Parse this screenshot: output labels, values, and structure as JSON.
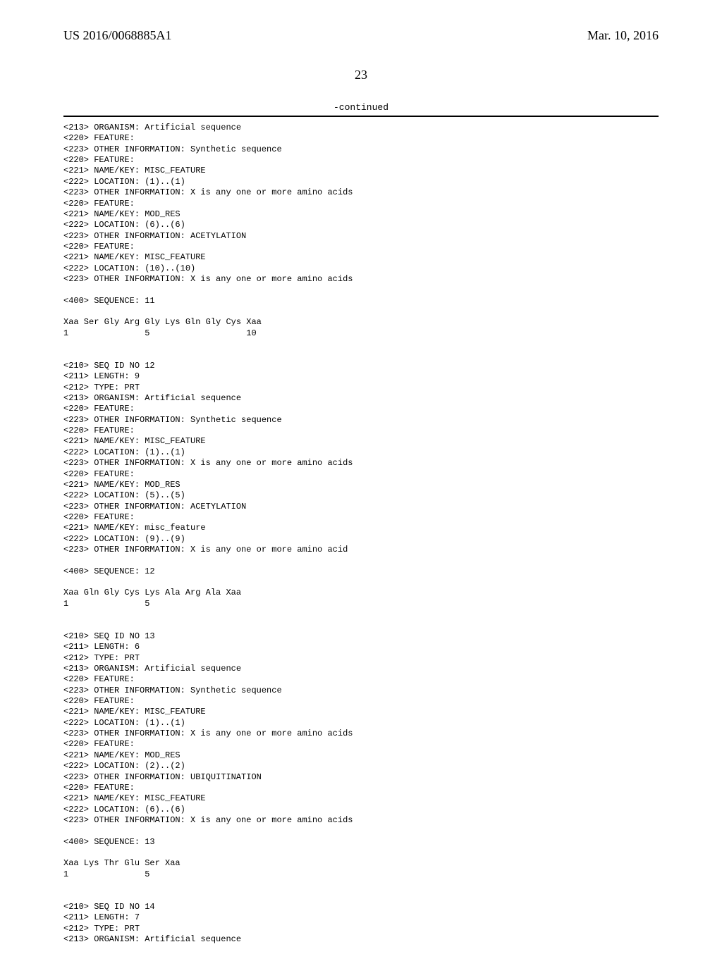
{
  "header": {
    "left": "US 2016/0068885A1",
    "right": "Mar. 10, 2016"
  },
  "pagenum": "23",
  "continued": "-continued",
  "seq_text": "<213> ORGANISM: Artificial sequence\n<220> FEATURE:\n<223> OTHER INFORMATION: Synthetic sequence\n<220> FEATURE:\n<221> NAME/KEY: MISC_FEATURE\n<222> LOCATION: (1)..(1)\n<223> OTHER INFORMATION: X is any one or more amino acids\n<220> FEATURE:\n<221> NAME/KEY: MOD_RES\n<222> LOCATION: (6)..(6)\n<223> OTHER INFORMATION: ACETYLATION\n<220> FEATURE:\n<221> NAME/KEY: MISC_FEATURE\n<222> LOCATION: (10)..(10)\n<223> OTHER INFORMATION: X is any one or more amino acids\n\n<400> SEQUENCE: 11\n\nXaa Ser Gly Arg Gly Lys Gln Gly Cys Xaa\n1               5                   10\n\n\n<210> SEQ ID NO 12\n<211> LENGTH: 9\n<212> TYPE: PRT\n<213> ORGANISM: Artificial sequence\n<220> FEATURE:\n<223> OTHER INFORMATION: Synthetic sequence\n<220> FEATURE:\n<221> NAME/KEY: MISC_FEATURE\n<222> LOCATION: (1)..(1)\n<223> OTHER INFORMATION: X is any one or more amino acids\n<220> FEATURE:\n<221> NAME/KEY: MOD_RES\n<222> LOCATION: (5)..(5)\n<223> OTHER INFORMATION: ACETYLATION\n<220> FEATURE:\n<221> NAME/KEY: misc_feature\n<222> LOCATION: (9)..(9)\n<223> OTHER INFORMATION: X is any one or more amino acid\n\n<400> SEQUENCE: 12\n\nXaa Gln Gly Cys Lys Ala Arg Ala Xaa\n1               5\n\n\n<210> SEQ ID NO 13\n<211> LENGTH: 6\n<212> TYPE: PRT\n<213> ORGANISM: Artificial sequence\n<220> FEATURE:\n<223> OTHER INFORMATION: Synthetic sequence\n<220> FEATURE:\n<221> NAME/KEY: MISC_FEATURE\n<222> LOCATION: (1)..(1)\n<223> OTHER INFORMATION: X is any one or more amino acids\n<220> FEATURE:\n<221> NAME/KEY: MOD_RES\n<222> LOCATION: (2)..(2)\n<223> OTHER INFORMATION: UBIQUITINATION\n<220> FEATURE:\n<221> NAME/KEY: MISC_FEATURE\n<222> LOCATION: (6)..(6)\n<223> OTHER INFORMATION: X is any one or more amino acids\n\n<400> SEQUENCE: 13\n\nXaa Lys Thr Glu Ser Xaa\n1               5\n\n\n<210> SEQ ID NO 14\n<211> LENGTH: 7\n<212> TYPE: PRT\n<213> ORGANISM: Artificial sequence"
}
